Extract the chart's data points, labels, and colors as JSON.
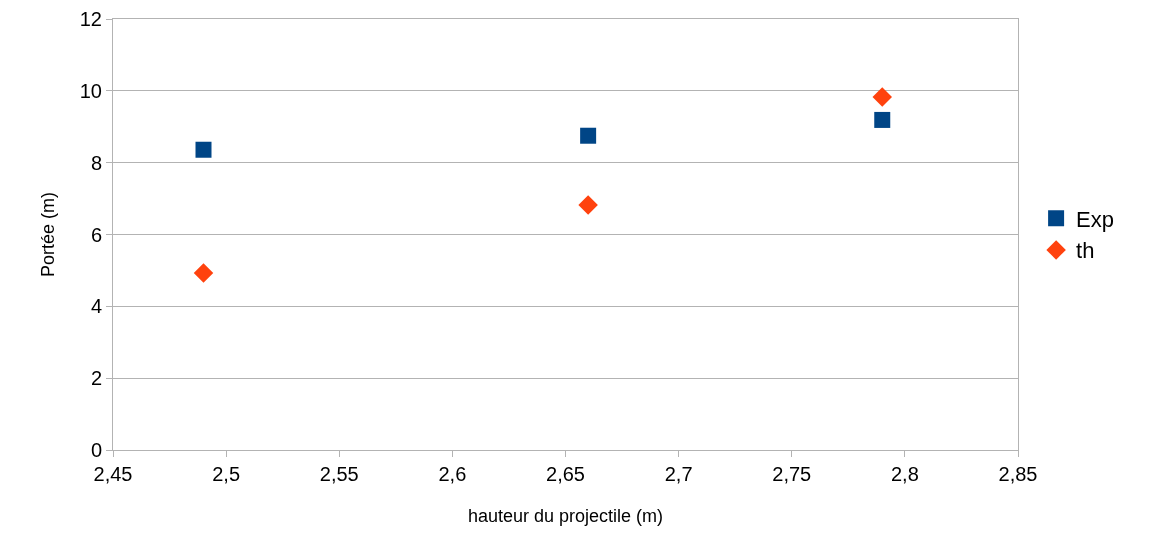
{
  "chart_data": {
    "type": "scatter",
    "xlabel": "hauteur du projectile (m)",
    "ylabel": "Portée (m)",
    "x": [
      2.49,
      2.66,
      2.79
    ],
    "series": [
      {
        "name": "Exp",
        "color": "#004586",
        "marker": "square",
        "values": [
          8.36,
          8.75,
          9.19
        ]
      },
      {
        "name": "th",
        "color": "#ff420e",
        "marker": "diamond",
        "values": [
          4.93,
          6.82,
          9.83
        ]
      }
    ],
    "xlim": [
      2.45,
      2.85
    ],
    "xticks": [
      {
        "value": 2.45,
        "label": "2,45"
      },
      {
        "value": 2.5,
        "label": "2,5"
      },
      {
        "value": 2.55,
        "label": "2,55"
      },
      {
        "value": 2.6,
        "label": "2,6"
      },
      {
        "value": 2.65,
        "label": "2,65"
      },
      {
        "value": 2.7,
        "label": "2,7"
      },
      {
        "value": 2.75,
        "label": "2,75"
      },
      {
        "value": 2.8,
        "label": "2,8"
      },
      {
        "value": 2.85,
        "label": "2,85"
      }
    ],
    "ylim": [
      0,
      12
    ],
    "yticks": [
      0,
      2,
      4,
      6,
      8,
      10,
      12
    ],
    "grid": "y",
    "legend": "right"
  }
}
